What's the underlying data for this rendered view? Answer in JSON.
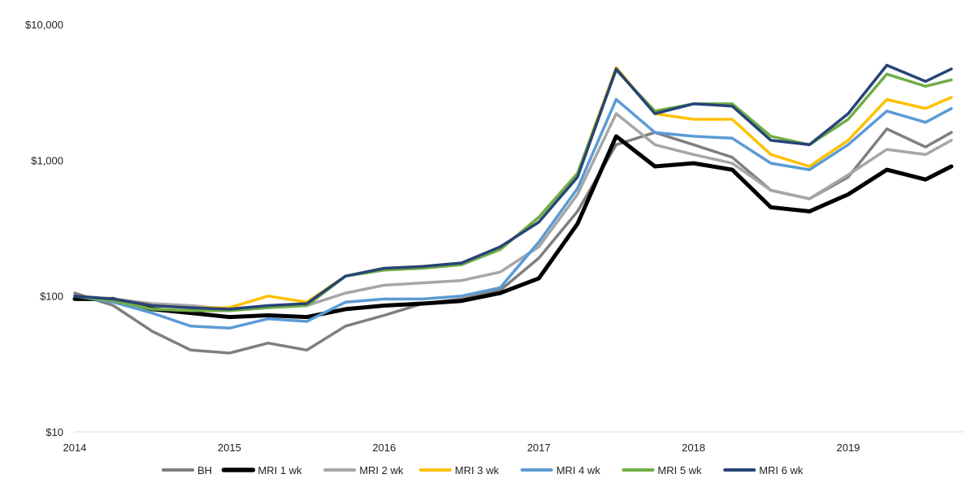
{
  "chart_data": {
    "type": "line",
    "title": "",
    "xlabel": "",
    "ylabel": "",
    "y_scale": "log",
    "ylim": [
      10,
      10000
    ],
    "xlim": [
      "2014-01-01",
      "2019-09-30"
    ],
    "grid": false,
    "legend_position": "bottom",
    "y_ticks": [
      {
        "value": 10000,
        "label": "$10,000"
      },
      {
        "value": 1000,
        "label": "$1,000"
      },
      {
        "value": 100,
        "label": "$100"
      },
      {
        "value": 10,
        "label": "$10"
      }
    ],
    "x_ticks": [
      {
        "value": "2014-01-01",
        "label": "2014"
      },
      {
        "value": "2015-01-01",
        "label": "2015"
      },
      {
        "value": "2016-01-01",
        "label": "2016"
      },
      {
        "value": "2017-01-01",
        "label": "2017"
      },
      {
        "value": "2018-01-01",
        "label": "2018"
      },
      {
        "value": "2019-01-01",
        "label": "2019"
      }
    ],
    "x": [
      "2014-01",
      "2014-04",
      "2014-07",
      "2014-10",
      "2015-01",
      "2015-04",
      "2015-07",
      "2015-10",
      "2016-01",
      "2016-04",
      "2016-07",
      "2016-10",
      "2017-01",
      "2017-04",
      "2017-07",
      "2017-10",
      "2018-01",
      "2018-04",
      "2018-07",
      "2018-10",
      "2019-01",
      "2019-04",
      "2019-07",
      "2019-09"
    ],
    "series": [
      {
        "name": "BH",
        "color": "#7f7f7f",
        "width": 3.5,
        "values": [
          105,
          85,
          55,
          40,
          38,
          45,
          40,
          60,
          72,
          88,
          95,
          110,
          190,
          420,
          1300,
          1600,
          1300,
          1050,
          600,
          520,
          750,
          1700,
          1250,
          1600
        ]
      },
      {
        "name": "MRI  1 wk",
        "color": "#000000",
        "width": 5,
        "values": [
          95,
          95,
          80,
          75,
          70,
          72,
          70,
          80,
          85,
          88,
          92,
          105,
          135,
          340,
          1500,
          900,
          950,
          850,
          450,
          420,
          560,
          850,
          720,
          900
        ]
      },
      {
        "name": "MRI 2 wk",
        "color": "#a6a6a6",
        "width": 3.5,
        "values": [
          100,
          95,
          88,
          85,
          80,
          85,
          85,
          105,
          120,
          125,
          130,
          150,
          230,
          560,
          2200,
          1300,
          1100,
          950,
          600,
          520,
          780,
          1200,
          1100,
          1400
        ]
      },
      {
        "name": "MRI  3 wk",
        "color": "#ffc000",
        "width": 3.5,
        "values": [
          100,
          95,
          85,
          82,
          82,
          100,
          90,
          140,
          160,
          165,
          175,
          220,
          380,
          800,
          4800,
          2200,
          2000,
          2000,
          1100,
          900,
          1400,
          2800,
          2400,
          2900
        ]
      },
      {
        "name": "MRI  4 wk",
        "color": "#5b9bd5",
        "width": 3.5,
        "values": [
          100,
          90,
          75,
          60,
          58,
          68,
          65,
          90,
          95,
          95,
          100,
          115,
          250,
          620,
          2800,
          1600,
          1500,
          1450,
          950,
          850,
          1300,
          2300,
          1900,
          2400
        ]
      },
      {
        "name": "MRI  5 wk",
        "color": "#70ad47",
        "width": 3.5,
        "values": [
          100,
          92,
          80,
          78,
          78,
          82,
          85,
          140,
          155,
          160,
          170,
          220,
          380,
          800,
          4600,
          2300,
          2600,
          2600,
          1500,
          1300,
          2000,
          4300,
          3500,
          3900
        ]
      },
      {
        "name": "MRI  6 wk",
        "color": "#264478",
        "width": 3.5,
        "values": [
          100,
          95,
          85,
          82,
          80,
          85,
          88,
          140,
          160,
          165,
          175,
          230,
          350,
          750,
          4700,
          2200,
          2600,
          2500,
          1400,
          1300,
          2200,
          5000,
          3800,
          4700
        ]
      }
    ]
  }
}
